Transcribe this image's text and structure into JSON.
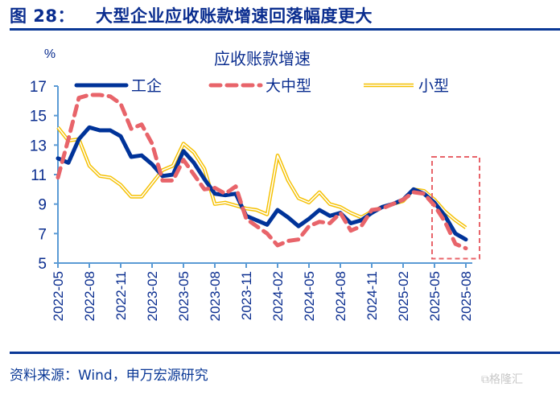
{
  "figure": {
    "number_label": "图 28：",
    "title": "大型企业应收账款增速回落幅度更大",
    "source": "资料来源：Wind，申万宏源研究",
    "watermark": "格隆汇"
  },
  "colors": {
    "title_blue": "#0a2d8f",
    "axis_blue": "#5b9bd5",
    "series_industry": "#003399",
    "series_large_medium": "#e8646a",
    "series_small": "#f5c000",
    "highlight_box": "#e8646a"
  },
  "chart_data": {
    "type": "line",
    "title": "应收账款增速",
    "ylabel": "%",
    "xlabel": "",
    "ylim": [
      5,
      17
    ],
    "yticks": [
      5,
      7,
      9,
      11,
      13,
      15,
      17
    ],
    "grid": false,
    "legend_position": "top",
    "x": [
      "2022-05",
      "2022-06",
      "2022-07",
      "2022-08",
      "2022-09",
      "2022-10",
      "2022-11",
      "2022-12",
      "2023-01",
      "2023-02",
      "2023-03",
      "2023-04",
      "2023-05",
      "2023-06",
      "2023-07",
      "2023-08",
      "2023-09",
      "2023-10",
      "2023-11",
      "2023-12",
      "2024-01",
      "2024-02",
      "2024-03",
      "2024-04",
      "2024-05",
      "2024-06",
      "2024-07",
      "2024-08",
      "2024-09",
      "2024-10",
      "2024-11",
      "2024-12",
      "2025-01",
      "2025-02",
      "2025-03",
      "2025-04",
      "2025-05",
      "2025-06",
      "2025-07",
      "2025-08"
    ],
    "xtick_labels": [
      "2022-05",
      "2022-08",
      "2022-11",
      "2023-02",
      "2023-05",
      "2023-08",
      "2023-11",
      "2024-02",
      "2024-05",
      "2024-08",
      "2024-11",
      "2025-02",
      "2025-05",
      "2025-08"
    ],
    "series": [
      {
        "name": "工企",
        "style": "solid-thick",
        "values": [
          12.1,
          11.8,
          13.4,
          14.2,
          14.0,
          14.0,
          13.6,
          12.2,
          12.3,
          11.7,
          10.9,
          11.0,
          12.6,
          11.8,
          10.7,
          9.7,
          9.6,
          9.7,
          8.2,
          7.9,
          7.6,
          8.6,
          8.1,
          7.5,
          8.0,
          8.6,
          8.2,
          8.4,
          7.7,
          7.9,
          8.4,
          8.8,
          9.0,
          9.3,
          10.0,
          9.7,
          9.1,
          8.2,
          7.0,
          6.6
        ]
      },
      {
        "name": "大中型",
        "style": "dashed",
        "values": [
          10.8,
          13.4,
          16.2,
          16.4,
          16.4,
          16.3,
          15.8,
          14.1,
          14.4,
          13.1,
          10.6,
          10.6,
          12.0,
          11.0,
          10.0,
          10.1,
          9.7,
          10.2,
          8.0,
          7.5,
          7.0,
          6.2,
          6.5,
          6.6,
          7.5,
          7.8,
          7.7,
          8.4,
          7.2,
          7.5,
          8.6,
          8.7,
          9.0,
          9.3,
          9.8,
          9.7,
          8.9,
          7.8,
          6.3,
          6.0
        ]
      },
      {
        "name": "小型",
        "style": "double-line",
        "values": [
          14.2,
          13.3,
          13.4,
          11.6,
          10.9,
          10.8,
          10.3,
          9.5,
          9.5,
          10.4,
          11.3,
          11.6,
          13.1,
          12.5,
          11.4,
          9.0,
          9.1,
          8.9,
          8.7,
          8.6,
          8.3,
          12.3,
          10.6,
          9.4,
          9.1,
          9.8,
          9.0,
          8.8,
          8.4,
          8.1,
          8.5,
          8.8,
          9.0,
          9.2,
          10.0,
          9.9,
          9.3,
          8.5,
          7.9,
          7.4
        ]
      }
    ],
    "annotations": [
      {
        "type": "highlight-box",
        "from": "2025-05",
        "to": "2025-08",
        "ylim": [
          5.3,
          12.2
        ],
        "style": "dashed"
      }
    ]
  }
}
